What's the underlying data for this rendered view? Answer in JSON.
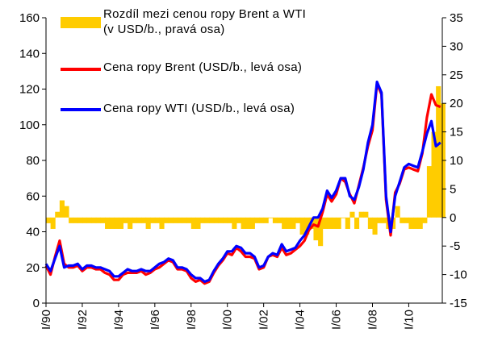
{
  "chart_data": {
    "type": "line",
    "x": [
      1990,
      1990.25,
      1990.5,
      1990.75,
      1991,
      1991.25,
      1991.5,
      1991.75,
      1992,
      1992.25,
      1992.5,
      1992.75,
      1993,
      1993.25,
      1993.5,
      1993.75,
      1994,
      1994.25,
      1994.5,
      1994.75,
      1995,
      1995.25,
      1995.5,
      1995.75,
      1996,
      1996.25,
      1996.5,
      1996.75,
      1997,
      1997.25,
      1997.5,
      1997.75,
      1998,
      1998.25,
      1998.5,
      1998.75,
      1999,
      1999.25,
      1999.5,
      1999.75,
      2000,
      2000.25,
      2000.5,
      2000.75,
      2001,
      2001.25,
      2001.5,
      2001.75,
      2002,
      2002.25,
      2002.5,
      2002.75,
      2003,
      2003.25,
      2003.5,
      2003.75,
      2004,
      2004.25,
      2004.5,
      2004.75,
      2005,
      2005.25,
      2005.5,
      2005.75,
      2006,
      2006.25,
      2006.5,
      2006.75,
      2007,
      2007.25,
      2007.5,
      2007.75,
      2008,
      2008.25,
      2008.5,
      2008.75,
      2009,
      2009.25,
      2009.5,
      2009.75,
      2010,
      2010.25,
      2010.5,
      2010.75,
      2011,
      2011.25,
      2011.5,
      2011.75
    ],
    "series": [
      {
        "name": "Rozdíl mezi cenou ropy Brent a WTI\n(v USD/b., pravá osa)",
        "type": "bar",
        "axis": "y2",
        "color": "#ffcc00",
        "values": [
          -1,
          -2,
          1,
          3,
          2,
          -1,
          -1,
          -1,
          -1,
          -1,
          -1,
          -1,
          -1,
          -2,
          -2,
          -2,
          -2,
          -1,
          -2,
          -1,
          -1,
          -1,
          -2,
          -1,
          -1,
          -2,
          -1,
          -1,
          -1,
          -1,
          -1,
          -1,
          -2,
          -2,
          -1,
          -1,
          -1,
          -1,
          -1,
          -1,
          -1,
          -2,
          -1,
          -2,
          -2,
          -2,
          -1,
          -1,
          -1,
          0,
          -1,
          -1,
          -2,
          -2,
          -2,
          -1,
          -3,
          -3,
          -2,
          -4,
          -5,
          -2,
          -2,
          -2,
          -2,
          0,
          -2,
          1,
          -2,
          1,
          1,
          -2,
          -3,
          -1,
          -1,
          -2,
          -2,
          2,
          -1,
          -1,
          -2,
          -2,
          -2,
          -1,
          9,
          15,
          23,
          20
        ]
      },
      {
        "name": "Cena ropy Brent (USD/b., levá osa)",
        "type": "line",
        "color": "#ff0000",
        "values": [
          21,
          16,
          26,
          35,
          22,
          20,
          20,
          21,
          18,
          20,
          20,
          19,
          19,
          17,
          16,
          13,
          13,
          16,
          17,
          17,
          17,
          18,
          16,
          17,
          19,
          20,
          22,
          24,
          23,
          19,
          19,
          18,
          14,
          12,
          13,
          11,
          12,
          17,
          21,
          24,
          28,
          27,
          31,
          29,
          26,
          26,
          25,
          19,
          20,
          26,
          27,
          26,
          31,
          27,
          28,
          30,
          32,
          35,
          41,
          44,
          43,
          51,
          61,
          57,
          61,
          70,
          68,
          61,
          56,
          66,
          76,
          88,
          97,
          123,
          117,
          58,
          38,
          62,
          67,
          75,
          76,
          75,
          74,
          84,
          104,
          117,
          111,
          110
        ]
      },
      {
        "name": "Cena ropy WTI (USD/b., levá osa)",
        "type": "line",
        "color": "#0000ff",
        "values": [
          22,
          18,
          25,
          32,
          20,
          21,
          21,
          22,
          19,
          21,
          21,
          20,
          20,
          19,
          18,
          15,
          15,
          17,
          19,
          18,
          18,
          19,
          18,
          18,
          20,
          22,
          23,
          25,
          24,
          20,
          20,
          19,
          16,
          14,
          14,
          12,
          13,
          18,
          22,
          25,
          29,
          29,
          32,
          31,
          28,
          28,
          26,
          20,
          21,
          26,
          28,
          27,
          33,
          29,
          30,
          31,
          35,
          38,
          43,
          48,
          48,
          53,
          63,
          59,
          63,
          70,
          70,
          60,
          58,
          65,
          75,
          90,
          100,
          124,
          118,
          60,
          40,
          60,
          68,
          76,
          78,
          77,
          76,
          85,
          95,
          102,
          88,
          90
        ]
      }
    ],
    "xlim": [
      1990,
      2011.85
    ],
    "xticks": [
      {
        "value": 1990,
        "label": "I/90"
      },
      {
        "value": 1992,
        "label": "I/92"
      },
      {
        "value": 1994,
        "label": "I/94"
      },
      {
        "value": 1996,
        "label": "I/96"
      },
      {
        "value": 1998,
        "label": "I/98"
      },
      {
        "value": 2000,
        "label": "I/00"
      },
      {
        "value": 2002,
        "label": "I/02"
      },
      {
        "value": 2004,
        "label": "I/04"
      },
      {
        "value": 2006,
        "label": "I/06"
      },
      {
        "value": 2008,
        "label": "I/08"
      },
      {
        "value": 2010,
        "label": "I/10"
      }
    ],
    "ylim": [
      0,
      160
    ],
    "yticks": [
      0,
      20,
      40,
      60,
      80,
      100,
      120,
      140,
      160
    ],
    "y2lim": [
      -15,
      35
    ],
    "y2ticks": [
      -15,
      -10,
      -5,
      0,
      5,
      10,
      15,
      20,
      25,
      30,
      35
    ],
    "grid": false
  }
}
